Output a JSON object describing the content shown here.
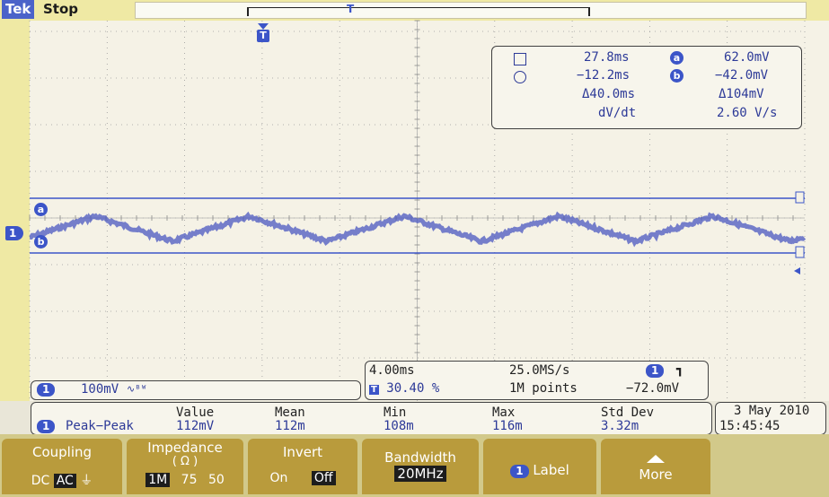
{
  "header": {
    "brand": "Tek",
    "state": "Stop"
  },
  "markers": {
    "trigger": "T",
    "cursor_a": "a",
    "cursor_b": "b",
    "channel": "1"
  },
  "cursor_readout": {
    "r1_time": "27.8ms",
    "r1_volt": "62.0mV",
    "r2_time": "−12.2ms",
    "r2_volt": "−42.0mV",
    "delta_time": "Δ40.0ms",
    "delta_volt": "Δ104mV",
    "dvdt_label": "dV/dt",
    "dvdt_value": "2.60 V/s"
  },
  "channel": {
    "num": "1",
    "scale": "100mV",
    "bw_symbol": "∿ᴮᵂ"
  },
  "timebase": {
    "scale": "4.00ms",
    "sample_rate": "25.0MS/s",
    "position": "30.40 %",
    "record": "1M points",
    "trigger_level": "−72.0mV",
    "trigger_slope": "┓"
  },
  "measurement": {
    "headers": [
      "Value",
      "Mean",
      "Min",
      "Max",
      "Std Dev"
    ],
    "name": "Peak−Peak",
    "values": [
      "112mV",
      "112m",
      "108m",
      "116m",
      "3.32m"
    ]
  },
  "datetime": {
    "date": "3 May 2010",
    "time": "15:45:45"
  },
  "menu": {
    "coupling": {
      "label": "Coupling",
      "opts": [
        "DC",
        "AC",
        "⏚"
      ],
      "selected": "AC"
    },
    "impedance": {
      "label": "Impedance",
      "unit": "( Ω )",
      "opts": [
        "1M",
        "75",
        "50"
      ],
      "selected": "1M"
    },
    "invert": {
      "label": "Invert",
      "opts": [
        "On",
        "Off"
      ],
      "selected": "Off"
    },
    "bandwidth": {
      "label": "Bandwidth",
      "value": "20MHz"
    },
    "label_btn": {
      "label": "Label"
    },
    "more": {
      "label": "More"
    }
  },
  "colors": {
    "trace": "#4a57c0",
    "accent": "#3c55c8",
    "menu": "#b99b3c",
    "topbar": "#efe9a4"
  }
}
